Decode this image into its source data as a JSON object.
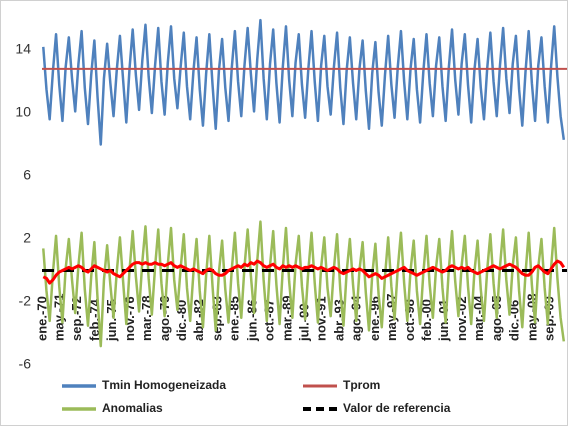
{
  "chart_data": {
    "type": "line",
    "x": [
      1970,
      1970.25,
      1970.5,
      1970.75,
      1971,
      1971.25,
      1971.5,
      1971.75,
      1972,
      1972.25,
      1972.5,
      1972.75,
      1973,
      1973.25,
      1973.5,
      1973.75,
      1974,
      1974.25,
      1974.5,
      1974.75,
      1975,
      1975.25,
      1975.5,
      1975.75,
      1976,
      1976.25,
      1976.5,
      1976.75,
      1977,
      1977.25,
      1977.5,
      1977.75,
      1978,
      1978.25,
      1978.5,
      1978.75,
      1979,
      1979.25,
      1979.5,
      1979.75,
      1980,
      1980.25,
      1980.5,
      1980.75,
      1981,
      1981.25,
      1981.5,
      1981.75,
      1982,
      1982.25,
      1982.5,
      1982.75,
      1983,
      1983.25,
      1983.5,
      1983.75,
      1984,
      1984.25,
      1984.5,
      1984.75,
      1985,
      1985.25,
      1985.5,
      1985.75,
      1986,
      1986.25,
      1986.5,
      1986.75,
      1987,
      1987.25,
      1987.5,
      1987.75,
      1988,
      1988.25,
      1988.5,
      1988.75,
      1989,
      1989.25,
      1989.5,
      1989.75,
      1990,
      1990.25,
      1990.5,
      1990.75,
      1991,
      1991.25,
      1991.5,
      1991.75,
      1992,
      1992.25,
      1992.5,
      1992.75,
      1993,
      1993.25,
      1993.5,
      1993.75,
      1994,
      1994.25,
      1994.5,
      1994.75,
      1995,
      1995.25,
      1995.5,
      1995.75,
      1996,
      1996.25,
      1996.5,
      1996.75,
      1997,
      1997.25,
      1997.5,
      1997.75,
      1998,
      1998.25,
      1998.5,
      1998.75,
      1999,
      1999.25,
      1999.5,
      1999.75,
      2000,
      2000.25,
      2000.5,
      2000.75,
      2001,
      2001.25,
      2001.5,
      2001.75,
      2002,
      2002.25,
      2002.5,
      2002.75,
      2003,
      2003.25,
      2003.5,
      2003.75,
      2004,
      2004.25,
      2004.5,
      2004.75,
      2005,
      2005.25,
      2005.5,
      2005.75,
      2006,
      2006.25,
      2006.5,
      2006.75,
      2007,
      2007.25,
      2007.5,
      2007.75,
      2008,
      2008.25,
      2008.5,
      2008.75,
      2009,
      2009.25,
      2009.5,
      2009.75,
      2010,
      2010.25,
      2010.5,
      2010.75
    ],
    "series": [
      {
        "name": "Tmin Homogeneizada",
        "color": "#4f81bd",
        "width": 2.5,
        "values": [
          14.2,
          11.5,
          9.6,
          12.6,
          15.0,
          11.8,
          9.5,
          12.9,
          14.8,
          12.2,
          10.1,
          13.1,
          15.2,
          11.6,
          9.3,
          12.4,
          14.6,
          11.0,
          8.0,
          12.2,
          14.4,
          11.9,
          9.8,
          12.7,
          14.9,
          12.1,
          9.4,
          12.8,
          15.3,
          12.4,
          10.2,
          13.3,
          15.6,
          12.3,
          10.0,
          13.0,
          15.4,
          12.0,
          9.9,
          13.2,
          15.5,
          12.2,
          10.3,
          12.9,
          15.1,
          11.7,
          9.6,
          12.6,
          14.8,
          11.5,
          9.2,
          12.5,
          15.0,
          11.8,
          9.0,
          12.7,
          14.7,
          11.6,
          9.5,
          12.8,
          15.2,
          12.0,
          9.8,
          13.0,
          15.4,
          12.5,
          10.1,
          13.4,
          15.9,
          12.2,
          9.6,
          13.1,
          15.3,
          11.9,
          9.4,
          12.9,
          15.5,
          12.1,
          9.8,
          13.2,
          15.0,
          11.8,
          9.7,
          12.8,
          15.2,
          12.0,
          9.5,
          13.0,
          14.9,
          11.7,
          9.9,
          12.9,
          15.1,
          11.6,
          9.3,
          12.7,
          14.8,
          11.9,
          9.6,
          12.8,
          14.6,
          11.4,
          9.0,
          12.5,
          14.5,
          11.3,
          9.2,
          12.4,
          14.9,
          11.8,
          9.7,
          12.9,
          15.2,
          12.0,
          9.6,
          12.8,
          14.7,
          11.5,
          9.4,
          12.6,
          15.0,
          11.9,
          9.8,
          13.0,
          14.8,
          11.7,
          9.5,
          12.9,
          15.3,
          12.1,
          9.9,
          13.1,
          15.0,
          11.8,
          9.4,
          12.7,
          14.7,
          11.6,
          9.6,
          12.8,
          15.1,
          12.0,
          9.8,
          13.0,
          15.4,
          12.2,
          10.0,
          13.1,
          14.9,
          11.5,
          9.2,
          12.6,
          15.2,
          11.9,
          9.5,
          13.0,
          14.8,
          11.7,
          9.4,
          12.9,
          15.5,
          12.3,
          9.8,
          8.3
        ]
      },
      {
        "name": "Tprom",
        "color": "#c0504d",
        "width": 2,
        "value": 12.8
      },
      {
        "name": "Anomalias",
        "color": "#9bbb59",
        "width": 2.5,
        "values": [
          1.4,
          -1.3,
          -3.2,
          -0.2,
          2.2,
          -1.0,
          -3.3,
          0.1,
          2.0,
          -0.6,
          -2.7,
          0.3,
          2.4,
          -1.2,
          -3.5,
          -0.4,
          1.8,
          -1.8,
          -4.8,
          -0.6,
          1.6,
          -0.9,
          -3.0,
          -0.1,
          2.1,
          -0.7,
          -3.4,
          0.0,
          2.5,
          -0.4,
          -2.6,
          0.5,
          2.8,
          -0.5,
          -2.8,
          0.2,
          2.6,
          -0.8,
          -2.9,
          0.4,
          2.7,
          -0.6,
          -2.5,
          0.1,
          2.3,
          -1.1,
          -3.2,
          -0.2,
          2.0,
          -1.3,
          -3.6,
          -0.3,
          2.2,
          -1.0,
          -3.8,
          -0.1,
          1.9,
          -1.2,
          -3.3,
          0.0,
          2.4,
          -0.8,
          -3.0,
          0.2,
          2.6,
          -0.3,
          -2.7,
          0.6,
          3.1,
          -0.6,
          -3.2,
          0.3,
          2.5,
          -0.9,
          -3.4,
          0.1,
          2.7,
          -0.7,
          -3.0,
          0.4,
          2.2,
          -1.0,
          -3.1,
          0.0,
          2.4,
          -0.8,
          -3.3,
          0.2,
          2.1,
          -1.1,
          -2.9,
          0.1,
          2.3,
          -1.2,
          -3.5,
          -0.1,
          2.0,
          -0.9,
          -3.2,
          0.0,
          1.8,
          -1.4,
          -3.8,
          -0.3,
          1.7,
          -1.5,
          -3.6,
          -0.4,
          2.1,
          -1.0,
          -3.1,
          0.1,
          2.4,
          -0.8,
          -3.2,
          0.0,
          1.9,
          -1.3,
          -3.4,
          -0.2,
          2.2,
          -0.9,
          -3.0,
          0.2,
          2.0,
          -1.1,
          -3.3,
          0.1,
          2.5,
          -0.7,
          -2.9,
          0.3,
          2.2,
          -1.0,
          -3.4,
          -0.1,
          1.9,
          -1.2,
          -3.2,
          0.0,
          2.3,
          -0.8,
          -3.0,
          0.2,
          2.6,
          -0.6,
          -2.8,
          0.3,
          2.1,
          -1.3,
          -3.6,
          -0.2,
          2.4,
          -0.9,
          -3.3,
          0.2,
          2.0,
          -1.1,
          -3.4,
          0.1,
          2.7,
          -0.5,
          -3.0,
          -4.5
        ]
      },
      {
        "name": "Valor de referencia",
        "color": "#000000",
        "width": 3,
        "dash": true,
        "value": 0
      },
      {
        "color": "#ff0000",
        "width": 3,
        "values": [
          -0.4,
          -0.5,
          -0.8,
          -0.6,
          -0.3,
          -0.1,
          0.0,
          0.1,
          0.2,
          0.1,
          0.2,
          0.3,
          0.2,
          0.0,
          -0.1,
          0.1,
          0.3,
          0.2,
          0.1,
          0.0,
          -0.1,
          0.0,
          -0.2,
          -0.3,
          -0.4,
          -0.2,
          0.0,
          0.2,
          0.4,
          0.5,
          0.5,
          0.4,
          0.5,
          0.4,
          0.4,
          0.5,
          0.4,
          0.4,
          0.3,
          0.4,
          0.5,
          0.3,
          0.2,
          0.3,
          0.2,
          0.1,
          0.0,
          0.1,
          0.0,
          -0.1,
          -0.2,
          0.0,
          0.1,
          0.0,
          -0.2,
          -0.3,
          -0.3,
          -0.2,
          0.0,
          0.1,
          0.2,
          0.3,
          0.2,
          0.4,
          0.3,
          0.5,
          0.4,
          0.6,
          0.5,
          0.3,
          0.2,
          0.3,
          0.4,
          0.2,
          0.1,
          0.3,
          0.2,
          0.3,
          0.2,
          0.3,
          0.2,
          0.1,
          0.2,
          0.2,
          0.3,
          0.2,
          0.1,
          0.2,
          0.1,
          0.0,
          0.1,
          0.2,
          0.1,
          -0.1,
          -0.2,
          -0.1,
          0.0,
          0.1,
          0.0,
          0.1,
          0.0,
          -0.2,
          -0.4,
          -0.3,
          -0.2,
          -0.3,
          -0.5,
          -0.4,
          -0.3,
          -0.2,
          -0.1,
          0.0,
          0.1,
          0.2,
          0.0,
          -0.1,
          -0.2,
          -0.3,
          -0.2,
          -0.1,
          0.0,
          0.1,
          0.2,
          0.1,
          0.0,
          -0.1,
          0.0,
          0.2,
          0.3,
          0.2,
          0.1,
          0.2,
          0.1,
          0.2,
          0.0,
          -0.1,
          -0.2,
          -0.1,
          0.0,
          0.1,
          0.2,
          0.3,
          0.2,
          0.1,
          0.2,
          0.3,
          0.4,
          0.3,
          0.2,
          0.0,
          -0.2,
          -0.3,
          -0.3,
          -0.1,
          0.2,
          0.3,
          0.1,
          -0.1,
          -0.2,
          0.1,
          0.4,
          0.6,
          0.5,
          0.2
        ]
      }
    ],
    "xlim": [
      1969.9,
      2011
    ],
    "xticks": [
      {
        "value": 1970,
        "label": "ene.-70"
      },
      {
        "value": 1971.333,
        "label": "may.-71"
      },
      {
        "value": 1972.667,
        "label": "sep.-72"
      },
      {
        "value": 1974.083,
        "label": "feb.-74"
      },
      {
        "value": 1975.417,
        "label": "jun.-75"
      },
      {
        "value": 1976.833,
        "label": "nov.-76"
      },
      {
        "value": 1978.167,
        "label": "mar.-78"
      },
      {
        "value": 1979.583,
        "label": "ago.-79"
      },
      {
        "value": 1980.917,
        "label": "dic.-80"
      },
      {
        "value": 1982.25,
        "label": "abr.-82"
      },
      {
        "value": 1983.667,
        "label": "sep.-83"
      },
      {
        "value": 1985,
        "label": "ene.-85"
      },
      {
        "value": 1986.417,
        "label": "jun.-86"
      },
      {
        "value": 1987.75,
        "label": "oct.-87"
      },
      {
        "value": 1989.167,
        "label": "mar.-89"
      },
      {
        "value": 1990.5,
        "label": "jul.-90"
      },
      {
        "value": 1991.833,
        "label": "nov.-91"
      },
      {
        "value": 1993.25,
        "label": "abr.-93"
      },
      {
        "value": 1994.583,
        "label": "ago.-94"
      },
      {
        "value": 1996,
        "label": "ene.-96"
      },
      {
        "value": 1997.333,
        "label": "may.-97"
      },
      {
        "value": 1998.75,
        "label": "oct.-98"
      },
      {
        "value": 2000.083,
        "label": "feb.-00"
      },
      {
        "value": 2001.417,
        "label": "jun.-01"
      },
      {
        "value": 2002.833,
        "label": "nov.-02"
      },
      {
        "value": 2004.167,
        "label": "mar.-04"
      },
      {
        "value": 2005.583,
        "label": "ago.-05"
      },
      {
        "value": 2006.917,
        "label": "dic.-06"
      },
      {
        "value": 2008.333,
        "label": "may.-08"
      },
      {
        "value": 2009.667,
        "label": "sep.-09"
      }
    ],
    "ylim": [
      -6,
      17
    ],
    "yticks": [
      -6,
      -2,
      2,
      6,
      10,
      14
    ],
    "grid": false
  }
}
